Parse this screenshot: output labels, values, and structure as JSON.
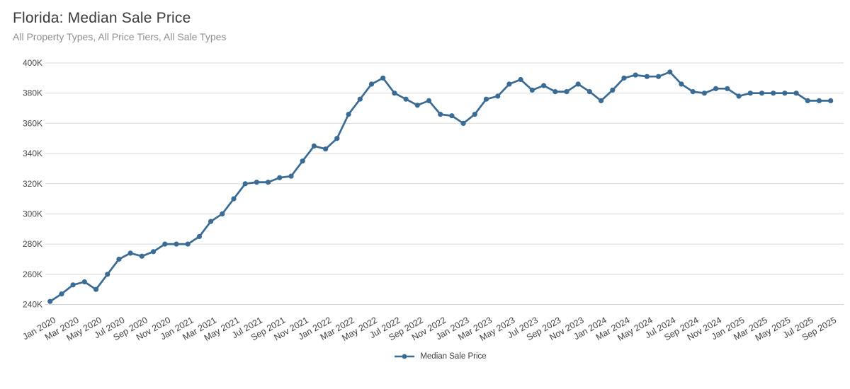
{
  "header": {
    "title": "Florida: Median Sale Price",
    "subtitle": "All Property Types, All Price Tiers, All Sale Types"
  },
  "colors": {
    "series": "#3a6b94",
    "grid": "#d8d8d8",
    "title_text": "#3a3a3a",
    "subtitle_text": "#8e8e8e",
    "axis_text": "#3f3f3f",
    "background": "#ffffff"
  },
  "chart_data": {
    "type": "line",
    "title": "Florida: Median Sale Price",
    "subtitle": "All Property Types, All Price Tiers, All Sale Types",
    "unit": "USD thousands",
    "x": [
      "Jan 2020",
      "Feb 2020",
      "Mar 2020",
      "Apr 2020",
      "May 2020",
      "Jun 2020",
      "Jul 2020",
      "Aug 2020",
      "Sep 2020",
      "Oct 2020",
      "Nov 2020",
      "Dec 2020",
      "Jan 2021",
      "Feb 2021",
      "Mar 2021",
      "Apr 2021",
      "May 2021",
      "Jun 2021",
      "Jul 2021",
      "Aug 2021",
      "Sep 2021",
      "Oct 2021",
      "Nov 2021",
      "Dec 2021",
      "Jan 2022",
      "Feb 2022",
      "Mar 2022",
      "Apr 2022",
      "May 2022",
      "Jun 2022",
      "Jul 2022",
      "Aug 2022",
      "Sep 2022",
      "Oct 2022",
      "Nov 2022",
      "Dec 2022",
      "Jan 2023",
      "Feb 2023",
      "Mar 2023",
      "Apr 2023",
      "May 2023",
      "Jun 2023",
      "Jul 2023",
      "Aug 2023",
      "Sep 2023",
      "Oct 2023",
      "Nov 2023",
      "Dec 2023",
      "Jan 2024",
      "Feb 2024",
      "Mar 2024",
      "Apr 2024",
      "May 2024",
      "Jun 2024",
      "Jul 2024",
      "Aug 2024",
      "Sep 2024",
      "Oct 2024",
      "Nov 2024",
      "Dec 2024",
      "Jan 2025",
      "Feb 2025",
      "Mar 2025",
      "Apr 2025",
      "May 2025",
      "Jun 2025",
      "Jul 2025",
      "Aug 2025",
      "Sep 2025"
    ],
    "series": [
      {
        "name": "Median Sale Price",
        "values": [
          242,
          247,
          253,
          255,
          250,
          260,
          270,
          274,
          272,
          275,
          280,
          280,
          280,
          285,
          295,
          300,
          310,
          320,
          321,
          321,
          324,
          325,
          335,
          345,
          343,
          350,
          366,
          376,
          386,
          390,
          380,
          376,
          372,
          375,
          366,
          365,
          360,
          366,
          376,
          378,
          386,
          389,
          382,
          385,
          381,
          381,
          386,
          381,
          375,
          382,
          390,
          392,
          391,
          391,
          394,
          386,
          381,
          380,
          383,
          383,
          378,
          380,
          380,
          380,
          380,
          380,
          375,
          375,
          375
        ]
      }
    ],
    "y_ticks": [
      "240K",
      "260K",
      "280K",
      "300K",
      "320K",
      "340K",
      "360K",
      "380K",
      "400K"
    ],
    "ylim": [
      240,
      400
    ],
    "x_tick_every": 2,
    "x_tick_rotation_deg": -30,
    "grid": "horizontal",
    "legend_position": "bottom-center"
  }
}
